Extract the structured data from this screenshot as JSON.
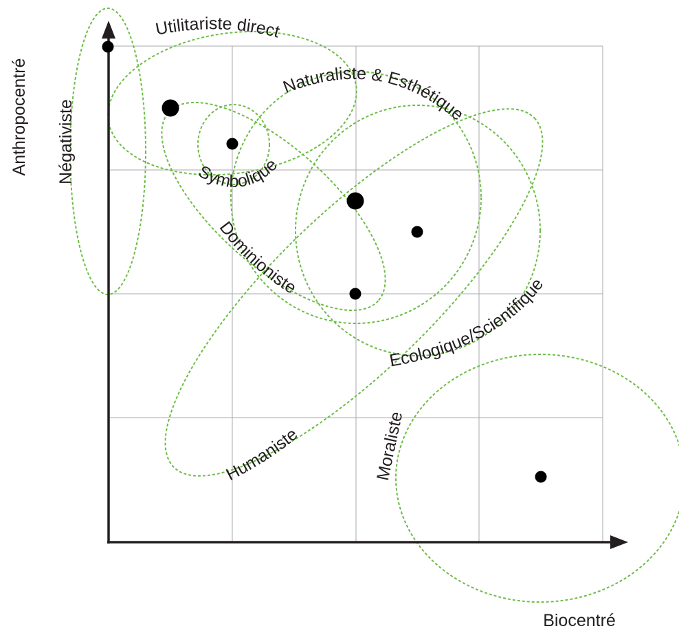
{
  "axes": {
    "y_label": "Anthropocentré",
    "x_label": "Biocentré"
  },
  "colors": {
    "zone": "#6cbd45",
    "grid": "#a7a9ac",
    "axis": "#231f20",
    "point": "#000000"
  },
  "zones": [
    {
      "id": "negativiste",
      "label": "Négativiste"
    },
    {
      "id": "utilitariste",
      "label": "Utilitariste direct"
    },
    {
      "id": "naturaliste",
      "label": "Naturaliste & Esthétique"
    },
    {
      "id": "symbolique",
      "label": "Symbolique"
    },
    {
      "id": "dominioniste",
      "label": "Dominioniste"
    },
    {
      "id": "ecologique",
      "label": "Ecologique/Scientifique"
    },
    {
      "id": "humaniste",
      "label": "Humaniste"
    },
    {
      "id": "moraliste",
      "label": "Moraliste"
    }
  ],
  "points": [
    {
      "id": "p1",
      "size": "small"
    },
    {
      "id": "p2",
      "size": "large"
    },
    {
      "id": "p3",
      "size": "small"
    },
    {
      "id": "p4",
      "size": "large"
    },
    {
      "id": "p5",
      "size": "small"
    },
    {
      "id": "p6",
      "size": "small"
    },
    {
      "id": "p7",
      "size": "small"
    }
  ]
}
